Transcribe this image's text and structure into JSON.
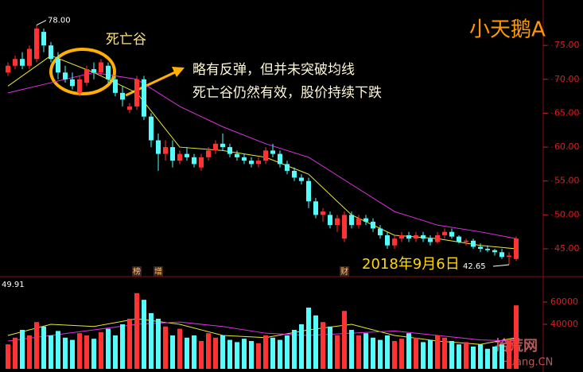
{
  "chart_data": {
    "type": "candlestick",
    "title": "小天鹅A",
    "callout": "死亡谷",
    "annotation": [
      "略有反弹，但并未突破均线",
      "死亡谷仍然有效，股价持续下跌"
    ],
    "date_label": "2018年9月6日",
    "max_label": "78.00",
    "min_label": "42.65",
    "volume_label": "49.91",
    "events": [
      {
        "index": 18,
        "label": "榜"
      },
      {
        "index": 21,
        "label": "增"
      },
      {
        "index": 47,
        "label": "财"
      }
    ],
    "watermark": [
      "拾荒网",
      "Huang.CN"
    ],
    "up_color": "#ff3333",
    "down_color": "#54fcfc",
    "open": [
      71,
      72,
      73,
      72,
      73,
      77,
      75,
      73,
      71,
      70,
      68,
      69.5,
      71.5,
      71,
      72,
      70,
      68,
      65.5,
      66,
      70,
      64.5,
      61,
      59,
      60,
      58,
      59,
      58.5,
      57,
      58.5,
      59.5,
      60.5,
      60,
      59,
      58.5,
      58,
      57.5,
      58,
      59.5,
      59,
      57.5,
      56.5,
      55.5,
      55,
      52,
      50,
      50,
      48.5,
      46.5,
      50,
      48.5,
      49.5,
      49,
      48,
      47,
      45.5,
      46.5,
      47,
      46.5,
      47,
      46.5,
      46,
      47,
      47.5,
      46.8,
      46,
      46.2,
      45.3,
      45,
      44.8,
      44.5,
      43.8,
      43.5
    ],
    "high": [
      72.5,
      73.5,
      74,
      75,
      78,
      77.5,
      75.5,
      74,
      72,
      71,
      70.5,
      72,
      72.5,
      73,
      72.5,
      70.5,
      69,
      66.5,
      70.5,
      70.5,
      65,
      62,
      61,
      61,
      59.5,
      60,
      59,
      59,
      60,
      61,
      62,
      60.5,
      59.5,
      59,
      58.5,
      58.5,
      60,
      60.5,
      59.5,
      58,
      57,
      56,
      55.5,
      52.5,
      51,
      50.5,
      50,
      50.5,
      50.5,
      50,
      50,
      49.5,
      48.5,
      47.5,
      47,
      47.5,
      47.5,
      47.5,
      47.5,
      47,
      47.5,
      48,
      48,
      47,
      46.5,
      46.5,
      45.8,
      45.5,
      45,
      45,
      44.5,
      46.8
    ],
    "low": [
      70.5,
      71.5,
      71.5,
      71.5,
      72.5,
      74,
      72.5,
      70,
      69.5,
      68.5,
      67.5,
      69,
      70,
      70.5,
      69.5,
      67.5,
      66,
      65,
      65.5,
      64,
      60,
      56.5,
      58,
      57,
      57.5,
      58,
      57,
      56.5,
      58,
      59,
      59.5,
      58.5,
      58,
      57.5,
      57,
      57,
      57.5,
      58.5,
      57,
      56,
      55,
      54.5,
      51,
      49.5,
      49,
      48,
      47.5,
      46,
      48,
      48,
      48.5,
      47.5,
      46.5,
      45,
      45,
      46,
      46,
      46,
      46,
      45.5,
      45.8,
      46.5,
      46.5,
      45.8,
      45.5,
      45,
      44.5,
      44.5,
      44,
      43.5,
      42.65,
      43.2
    ],
    "close": [
      72,
      73,
      72,
      74.5,
      77.5,
      75,
      73,
      71,
      70,
      69,
      70,
      71.5,
      71,
      72.5,
      70,
      68,
      67,
      66,
      70,
      64.5,
      61,
      59,
      60,
      58,
      59,
      58.5,
      57.5,
      58.5,
      59.5,
      60.5,
      60,
      59,
      58.5,
      58,
      57.5,
      58,
      59.5,
      59,
      57.5,
      56.5,
      55.5,
      55,
      52,
      50,
      50.5,
      48.5,
      49.5,
      50,
      48.5,
      49.5,
      49,
      48,
      47,
      45.5,
      46.5,
      47,
      46.5,
      47,
      46.5,
      46,
      47,
      47.5,
      46.8,
      46,
      46.2,
      45.3,
      45,
      44.8,
      44.5,
      43.8,
      44,
      46.5
    ],
    "volume": [
      22000,
      28000,
      35000,
      30000,
      42000,
      38000,
      30000,
      34000,
      28000,
      26000,
      32000,
      30000,
      27000,
      33000,
      36000,
      30000,
      40000,
      45000,
      68000,
      62000,
      50000,
      45000,
      38000,
      30000,
      36000,
      28000,
      30000,
      25000,
      32000,
      28000,
      30000,
      26000,
      24000,
      27000,
      25000,
      23000,
      30000,
      28000,
      26000,
      30000,
      35000,
      40000,
      55000,
      48000,
      42000,
      38000,
      30000,
      52000,
      35000,
      30000,
      32000,
      28000,
      26000,
      30000,
      25000,
      27000,
      32000,
      28000,
      24000,
      26000,
      30000,
      28000,
      25000,
      22000,
      24000,
      20000,
      22000,
      18000,
      20000,
      22000,
      26000,
      57000
    ],
    "ma": [
      {
        "color": "#e8e830",
        "x": [
          0,
          6,
          12,
          18,
          24,
          30,
          36,
          42,
          48,
          54,
          60,
          66,
          71
        ],
        "values": [
          69,
          73.5,
          71,
          68,
          60,
          59.5,
          58.5,
          56,
          50,
          47,
          46.5,
          45.5,
          45
        ]
      },
      {
        "color": "#e030e0",
        "x": [
          0,
          6,
          12,
          18,
          24,
          30,
          36,
          42,
          48,
          54,
          60,
          66,
          71
        ],
        "values": [
          68,
          69.5,
          71,
          70,
          66,
          63,
          60.5,
          58.5,
          54.5,
          50.5,
          48.5,
          47.5,
          46.5
        ]
      }
    ],
    "volume_ma": [
      {
        "color": "#e8e830",
        "x": [
          0,
          6,
          12,
          18,
          24,
          30,
          36,
          42,
          48,
          54,
          60,
          66,
          71
        ],
        "values": [
          30000,
          40000,
          38000,
          45000,
          40000,
          30000,
          28000,
          35000,
          40000,
          30000,
          25000,
          22000,
          28000
        ]
      },
      {
        "color": "#e030e0",
        "x": [
          0,
          6,
          12,
          18,
          24,
          30,
          36,
          42,
          48,
          54,
          60,
          66,
          71
        ],
        "values": [
          25000,
          30000,
          35000,
          40000,
          42000,
          38000,
          32000,
          30000,
          32000,
          34000,
          30000,
          26000,
          25000
        ]
      }
    ],
    "ylim": [
      41.25,
      81.7
    ],
    "yticks": [
      {
        "value": 75,
        "label": "75.00"
      },
      {
        "value": 70,
        "label": "70.00"
      },
      {
        "value": 65,
        "label": "65.00"
      },
      {
        "value": 60,
        "label": "60.00"
      },
      {
        "value": 55,
        "label": "55.00"
      },
      {
        "value": 50,
        "label": "50.00"
      },
      {
        "value": 45,
        "label": "45.00"
      }
    ],
    "vlim": [
      0,
      81400
    ],
    "vticks": [
      60000,
      40000
    ],
    "grid": true
  }
}
